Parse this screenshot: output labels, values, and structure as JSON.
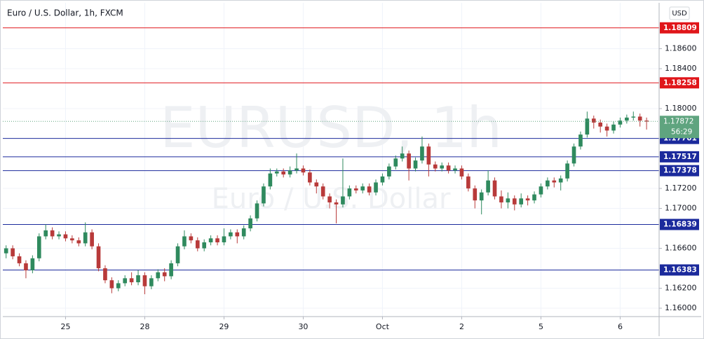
{
  "chart_data": {
    "type": "candlestick",
    "title": "Euro / U.S. Dollar, 1h, FXCM",
    "watermark": "EURUSD, 1h",
    "watermark_subtitle": "Euro / U.S. Dollar",
    "currency_button": "USD",
    "up_color": "#2f8a5e",
    "down_color": "#b83a3a",
    "open": [
      1.1655,
      1.166,
      1.1652,
      1.1645,
      1.1638,
      1.165,
      1.1672,
      1.1678,
      1.1672,
      1.1674,
      1.167,
      1.1668,
      1.1665,
      1.1676,
      1.1662,
      1.164,
      1.1628,
      1.162,
      1.1625,
      1.163,
      1.1626,
      1.1633,
      1.1622,
      1.163,
      1.1636,
      1.1632,
      1.1645,
      1.1662,
      1.1672,
      1.1668,
      1.166,
      1.1666,
      1.167,
      1.1666,
      1.1672,
      1.1676,
      1.1672,
      1.168,
      1.169,
      1.1705,
      1.1722,
      1.1735,
      1.1737,
      1.1734,
      1.1738,
      1.174,
      1.1736,
      1.1726,
      1.1722,
      1.1712,
      1.1706,
      1.1704,
      1.1712,
      1.172,
      1.1718,
      1.1722,
      1.1716,
      1.1726,
      1.1732,
      1.1742,
      1.175,
      1.1755,
      1.174,
      1.1748,
      1.1762,
      1.1744,
      1.174,
      1.1743,
      1.1738,
      1.174,
      1.1732,
      1.172,
      1.1708,
      1.1716,
      1.1728,
      1.1712,
      1.1706,
      1.171,
      1.1704,
      1.171,
      1.1708,
      1.1714,
      1.1722,
      1.1728,
      1.1726,
      1.173,
      1.1745,
      1.1762,
      1.1774,
      1.179,
      1.1786,
      1.1782,
      1.1778,
      1.1784,
      1.1788,
      1.1791,
      1.1792,
      1.1788
    ],
    "high": [
      1.1663,
      1.1663,
      1.1655,
      1.1648,
      1.1653,
      1.1675,
      1.1684,
      1.1681,
      1.1677,
      1.1677,
      1.1673,
      1.1671,
      1.1686,
      1.1679,
      1.1665,
      1.1643,
      1.1631,
      1.1628,
      1.1633,
      1.1636,
      1.1638,
      1.1636,
      1.1633,
      1.1639,
      1.164,
      1.1648,
      1.1665,
      1.1678,
      1.1675,
      1.1671,
      1.1669,
      1.1673,
      1.1673,
      1.168,
      1.1679,
      1.1679,
      1.1683,
      1.1693,
      1.1708,
      1.1725,
      1.174,
      1.174,
      1.174,
      1.1742,
      1.1755,
      1.1743,
      1.1739,
      1.1729,
      1.1725,
      1.1715,
      1.1709,
      1.175,
      1.1723,
      1.1723,
      1.1725,
      1.1725,
      1.1729,
      1.1735,
      1.1745,
      1.1753,
      1.1762,
      1.1758,
      1.1751,
      1.1772,
      1.1765,
      1.1747,
      1.1746,
      1.1746,
      1.1743,
      1.1743,
      1.1735,
      1.1723,
      1.1719,
      1.1738,
      1.1731,
      1.1718,
      1.1716,
      1.1713,
      1.1715,
      1.1713,
      1.1717,
      1.1725,
      1.1731,
      1.1731,
      1.1733,
      1.1748,
      1.1765,
      1.1777,
      1.1797,
      1.1793,
      1.1789,
      1.1785,
      1.1787,
      1.1791,
      1.1794,
      1.1797,
      1.1795,
      1.1791
    ],
    "low": [
      1.165,
      1.1649,
      1.1642,
      1.163,
      1.1635,
      1.1647,
      1.1669,
      1.1669,
      1.1669,
      1.1667,
      1.1665,
      1.1662,
      1.1662,
      1.1659,
      1.1637,
      1.1625,
      1.1615,
      1.1617,
      1.1622,
      1.1623,
      1.1623,
      1.1614,
      1.1619,
      1.1627,
      1.1627,
      1.1629,
      1.1642,
      1.1659,
      1.1665,
      1.1657,
      1.1657,
      1.1663,
      1.1663,
      1.1663,
      1.1669,
      1.1665,
      1.1669,
      1.1677,
      1.1687,
      1.1702,
      1.1719,
      1.1732,
      1.1731,
      1.1731,
      1.1735,
      1.1733,
      1.1723,
      1.1715,
      1.1709,
      1.17,
      1.1685,
      1.1701,
      1.1709,
      1.1715,
      1.1715,
      1.1713,
      1.1713,
      1.1723,
      1.1729,
      1.1739,
      1.1747,
      1.1728,
      1.1737,
      1.1745,
      1.1732,
      1.1737,
      1.1737,
      1.1735,
      1.1735,
      1.1729,
      1.1717,
      1.17,
      1.1694,
      1.1713,
      1.1709,
      1.17,
      1.17,
      1.1698,
      1.1701,
      1.1703,
      1.1705,
      1.1711,
      1.1719,
      1.1721,
      1.1718,
      1.1727,
      1.1742,
      1.1759,
      1.1771,
      1.178,
      1.1776,
      1.1772,
      1.1775,
      1.1781,
      1.1785,
      1.1788,
      1.1782,
      1.1779
    ],
    "close": [
      1.166,
      1.1652,
      1.1645,
      1.1638,
      1.165,
      1.1672,
      1.1678,
      1.1672,
      1.1674,
      1.167,
      1.1668,
      1.1665,
      1.1676,
      1.1662,
      1.164,
      1.1628,
      1.162,
      1.1625,
      1.163,
      1.1626,
      1.1633,
      1.1622,
      1.163,
      1.1636,
      1.1632,
      1.1645,
      1.1662,
      1.1672,
      1.1668,
      1.166,
      1.1666,
      1.167,
      1.1666,
      1.1672,
      1.1676,
      1.1672,
      1.168,
      1.169,
      1.1705,
      1.1722,
      1.1735,
      1.1737,
      1.1734,
      1.1738,
      1.174,
      1.1736,
      1.1726,
      1.1722,
      1.1712,
      1.1706,
      1.1704,
      1.1712,
      1.172,
      1.1718,
      1.1722,
      1.1716,
      1.1726,
      1.1732,
      1.1742,
      1.175,
      1.1755,
      1.174,
      1.1748,
      1.1762,
      1.1744,
      1.174,
      1.1743,
      1.1738,
      1.174,
      1.1732,
      1.172,
      1.1708,
      1.1716,
      1.1728,
      1.1712,
      1.1706,
      1.171,
      1.1704,
      1.171,
      1.1708,
      1.1714,
      1.1722,
      1.1728,
      1.1726,
      1.173,
      1.1745,
      1.1762,
      1.1774,
      1.179,
      1.1786,
      1.1782,
      1.1778,
      1.1784,
      1.1788,
      1.1791,
      1.1792,
      1.1788,
      1.1787
    ],
    "xlim": [
      -0.5,
      98.9
    ],
    "xticks": [
      {
        "value": 9,
        "label": "25"
      },
      {
        "value": 21,
        "label": "28"
      },
      {
        "value": 33,
        "label": "29"
      },
      {
        "value": 45,
        "label": "30"
      },
      {
        "value": 57,
        "label": "Oct"
      },
      {
        "value": 69,
        "label": "2"
      },
      {
        "value": 81,
        "label": "5"
      },
      {
        "value": 93,
        "label": "6"
      }
    ],
    "ylim": [
      1.15916,
      1.1906
    ],
    "yticks": [
      {
        "value": 1.16,
        "label": "1.16000"
      },
      {
        "value": 1.162,
        "label": "1.16200"
      },
      {
        "value": 1.166,
        "label": "1.16600"
      },
      {
        "value": 1.17,
        "label": "1.17000"
      },
      {
        "value": 1.172,
        "label": "1.17200"
      },
      {
        "value": 1.18,
        "label": "1.18000"
      },
      {
        "value": 1.184,
        "label": "1.18400"
      },
      {
        "value": 1.186,
        "label": "1.18600"
      }
    ],
    "grid": true,
    "levels": [
      {
        "value": 1.18809,
        "color": "#e0161a"
      },
      {
        "value": 1.18258,
        "color": "#e0161a"
      },
      {
        "value": 1.17701,
        "color": "#1b2a9c"
      },
      {
        "value": 1.17517,
        "color": "#1b2a9c"
      },
      {
        "value": 1.17378,
        "color": "#1b2a9c"
      },
      {
        "value": 1.16839,
        "color": "#1b2a9c"
      },
      {
        "value": 1.16383,
        "color": "#1b2a9c"
      }
    ],
    "last_price": 1.17872,
    "last_price_color": "#5fa47f",
    "countdown": "56:29"
  }
}
